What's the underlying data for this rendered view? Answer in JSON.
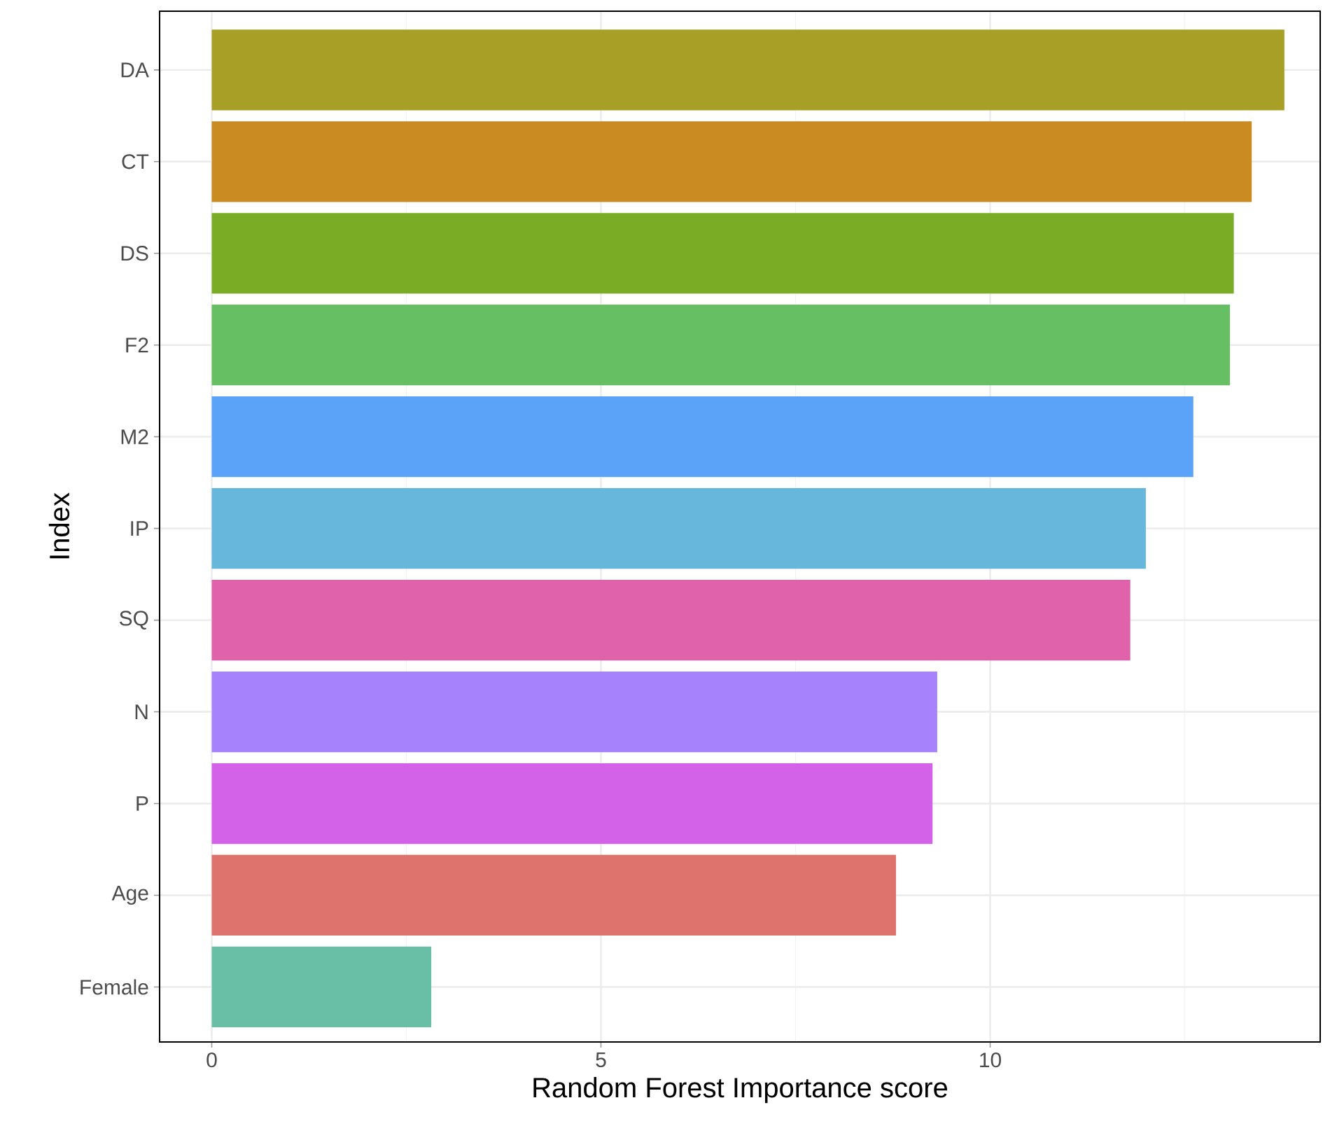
{
  "chart_data": {
    "type": "bar",
    "orientation": "horizontal",
    "xlabel": "Random Forest Importance score",
    "ylabel": "Index",
    "categories": [
      "DA",
      "CT",
      "DS",
      "F2",
      "M2",
      "IP",
      "SQ",
      "N",
      "P",
      "Age",
      "Female"
    ],
    "values": [
      13.78,
      13.36,
      13.13,
      13.08,
      12.61,
      12.0,
      11.8,
      9.32,
      9.26,
      8.79,
      2.82
    ],
    "colors": [
      "#a89f27",
      "#c98b22",
      "#7aad25",
      "#67bf63",
      "#5aa3f8",
      "#67b7dc",
      "#df62ab",
      "#a683fd",
      "#d462e8",
      "#de736d",
      "#68bfa5"
    ],
    "xlim": [
      -0.67,
      14.24
    ],
    "xticks": [
      0,
      5,
      10
    ],
    "grid": true
  }
}
